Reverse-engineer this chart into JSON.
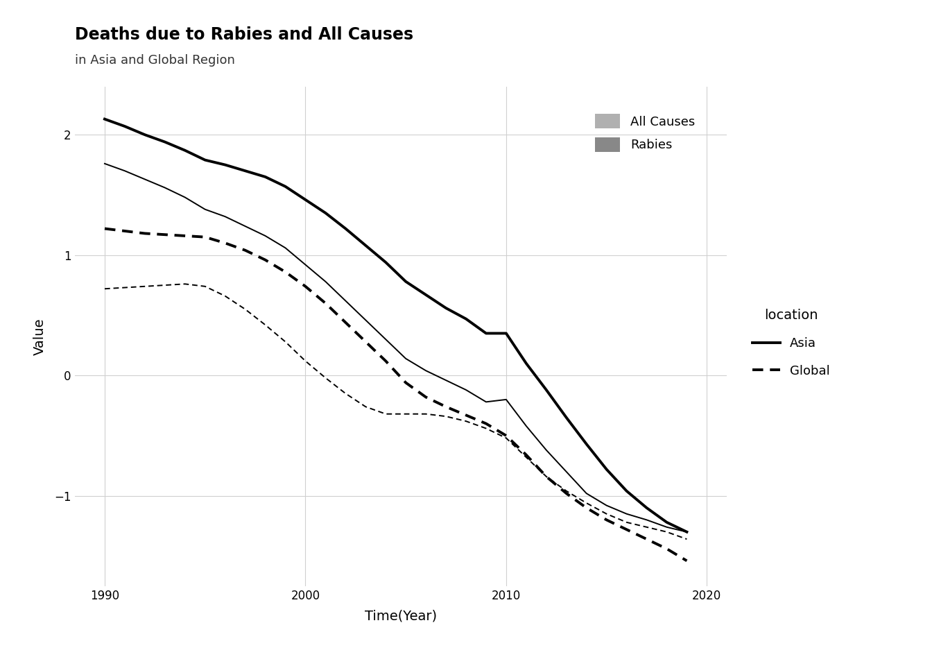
{
  "title": "Deaths due to Rabies and All Causes",
  "subtitle": "in Asia and Global Region",
  "xlabel": "Time(Year)",
  "ylabel": "Value",
  "xlim": [
    1988.5,
    2021
  ],
  "ylim": [
    -1.75,
    2.4
  ],
  "yticks": [
    -1,
    0,
    1,
    2
  ],
  "xticks": [
    1990,
    2000,
    2010,
    2020
  ],
  "background_color": "#ffffff",
  "grid_color": "#d0d0d0",
  "years": [
    1990,
    1991,
    1992,
    1993,
    1994,
    1995,
    1996,
    1997,
    1998,
    1999,
    2000,
    2001,
    2002,
    2003,
    2004,
    2005,
    2006,
    2007,
    2008,
    2009,
    2010,
    2011,
    2012,
    2013,
    2014,
    2015,
    2016,
    2017,
    2018,
    2019
  ],
  "asia_all_causes": [
    2.13,
    2.07,
    2.0,
    1.94,
    1.87,
    1.79,
    1.75,
    1.7,
    1.65,
    1.57,
    1.46,
    1.35,
    1.22,
    1.08,
    0.94,
    0.78,
    0.67,
    0.56,
    0.47,
    0.35,
    0.35,
    0.1,
    -0.12,
    -0.35,
    -0.57,
    -0.78,
    -0.96,
    -1.1,
    -1.22,
    -1.3
  ],
  "asia_rabies": [
    1.76,
    1.7,
    1.63,
    1.56,
    1.48,
    1.38,
    1.32,
    1.24,
    1.16,
    1.06,
    0.92,
    0.78,
    0.62,
    0.46,
    0.3,
    0.14,
    0.04,
    -0.04,
    -0.12,
    -0.22,
    -0.2,
    -0.42,
    -0.62,
    -0.8,
    -0.98,
    -1.08,
    -1.15,
    -1.2,
    -1.26,
    -1.3
  ],
  "global_all_causes": [
    1.22,
    1.2,
    1.18,
    1.17,
    1.16,
    1.15,
    1.1,
    1.04,
    0.96,
    0.86,
    0.74,
    0.6,
    0.44,
    0.28,
    0.12,
    -0.06,
    -0.18,
    -0.26,
    -0.33,
    -0.4,
    -0.5,
    -0.66,
    -0.84,
    -0.98,
    -1.1,
    -1.2,
    -1.28,
    -1.36,
    -1.44,
    -1.54
  ],
  "global_rabies": [
    0.72,
    0.73,
    0.74,
    0.75,
    0.76,
    0.74,
    0.66,
    0.55,
    0.42,
    0.28,
    0.12,
    -0.02,
    -0.15,
    -0.26,
    -0.32,
    -0.32,
    -0.32,
    -0.34,
    -0.38,
    -0.44,
    -0.52,
    -0.68,
    -0.84,
    -0.96,
    -1.06,
    -1.15,
    -1.22,
    -1.26,
    -1.3,
    -1.36
  ],
  "color_asia": "#000000",
  "color_global": "#000000",
  "color_all_causes": "#b0b0b0",
  "color_rabies": "#888888",
  "lw_asia_all": 2.8,
  "lw_asia_rabies": 1.4,
  "lw_global_all": 2.8,
  "lw_global_rabies": 1.4
}
